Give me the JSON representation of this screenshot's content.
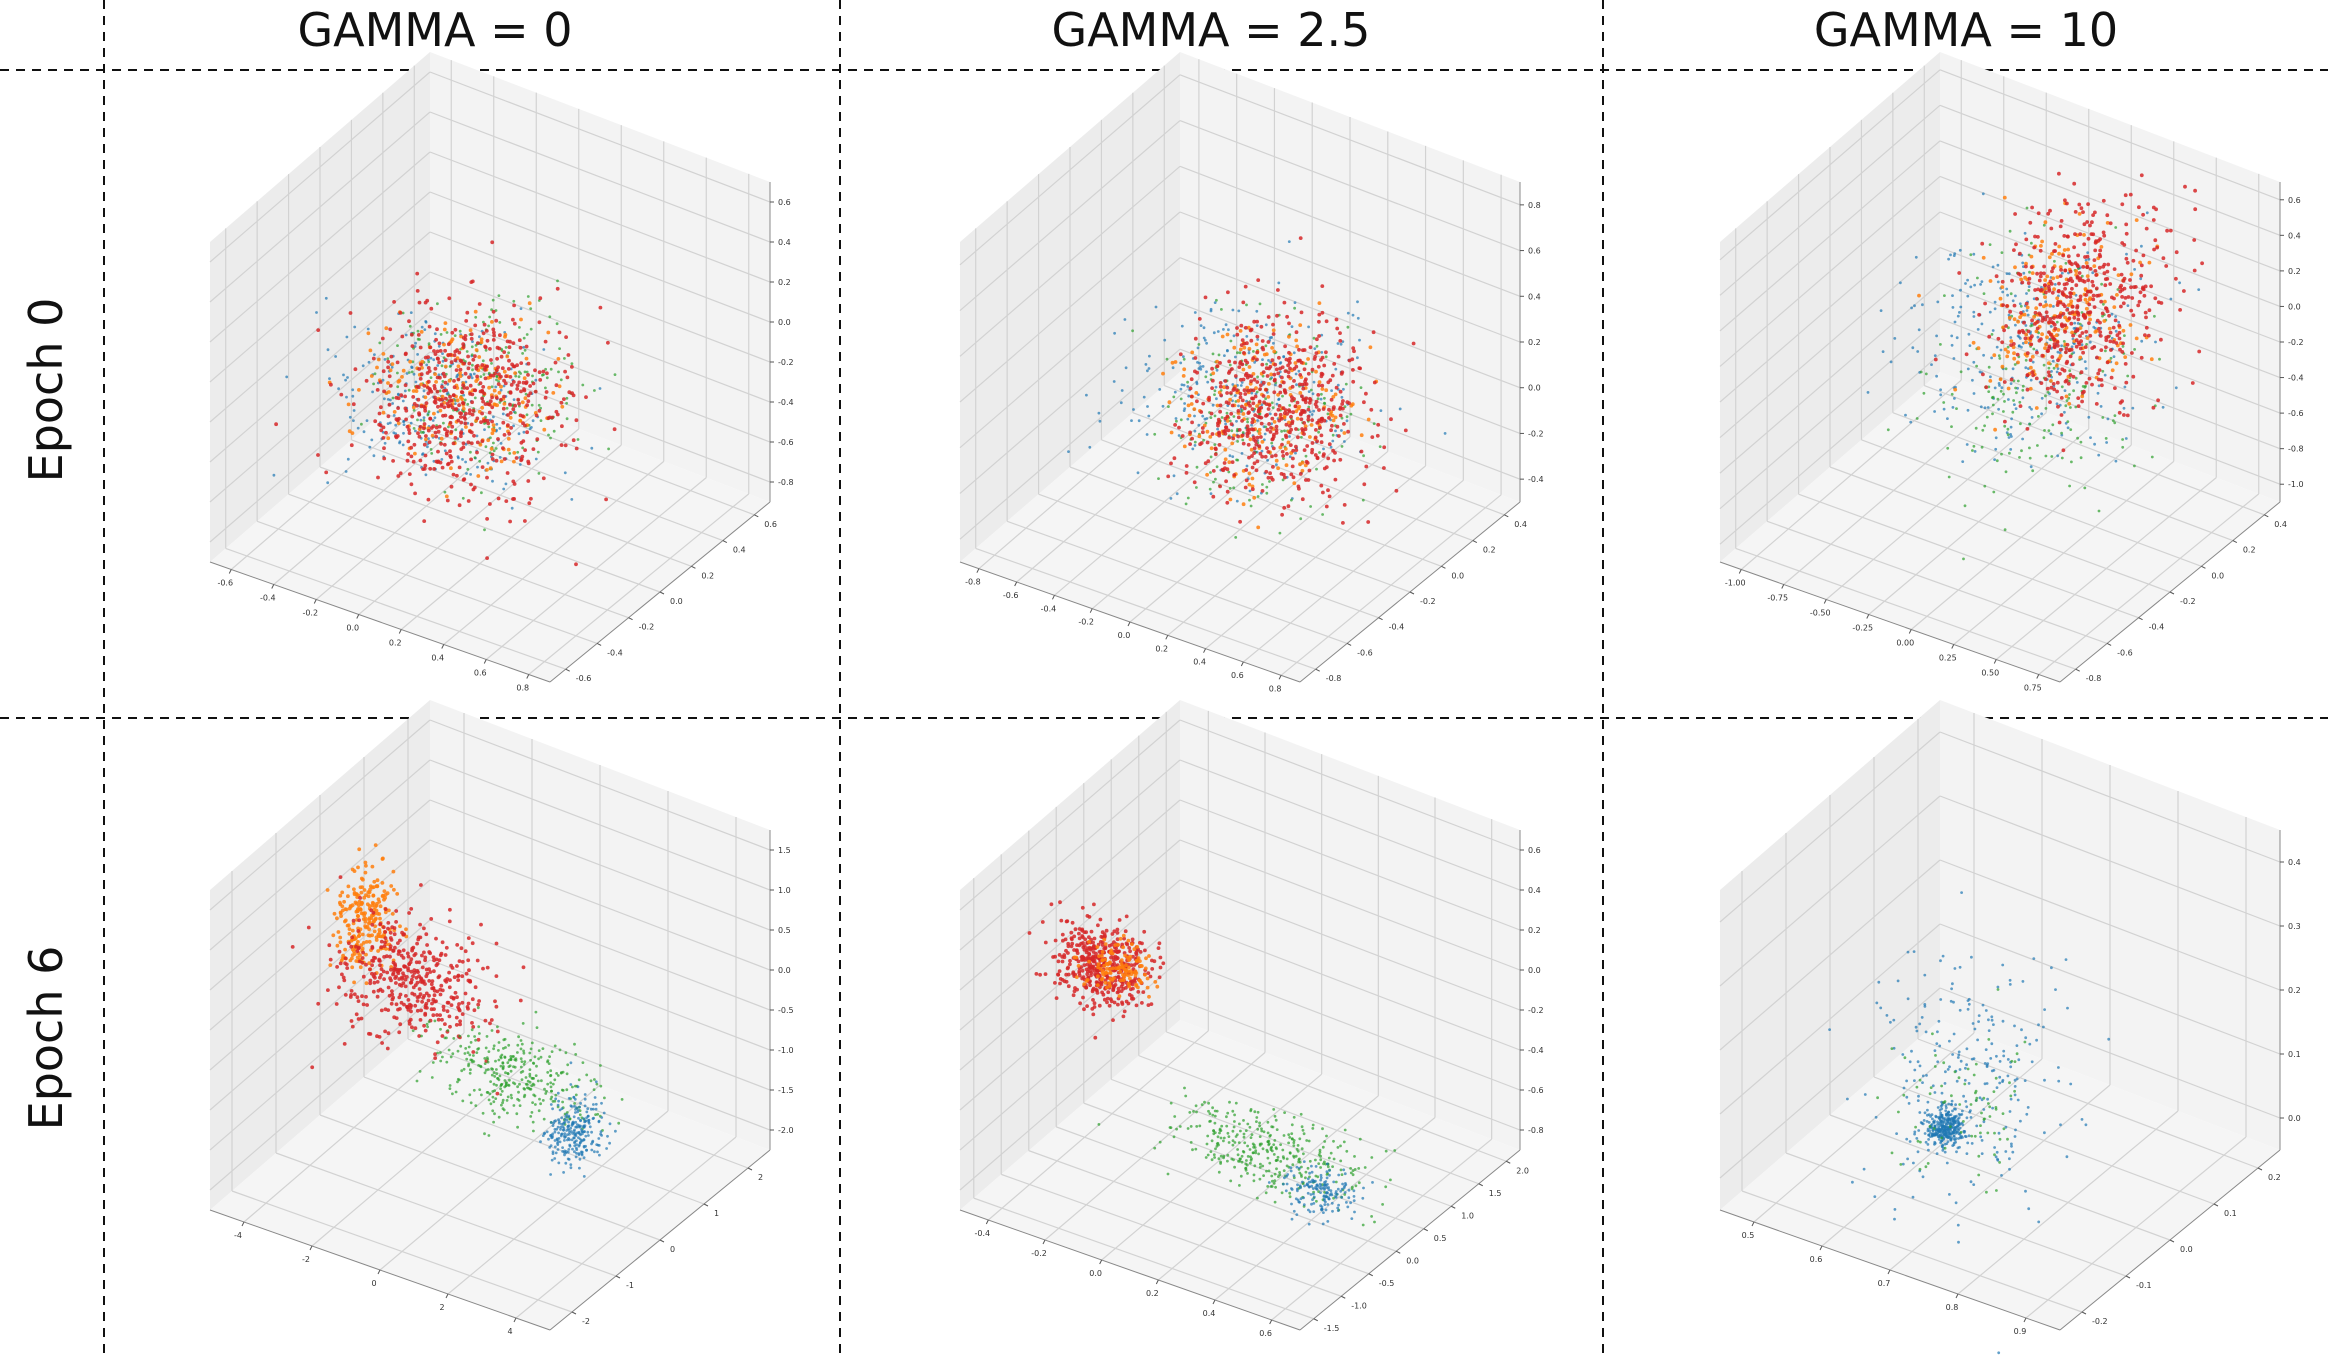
{
  "headers": {
    "columns": [
      "GAMMA = 0",
      "GAMMA = 2.5",
      "GAMMA = 10"
    ],
    "rows": [
      "Epoch 0",
      "Epoch 6"
    ]
  },
  "colors": {
    "class_a": "#d62728",
    "class_b": "#ff7f0e",
    "class_c": "#2ca02c",
    "class_d": "#1f77b4"
  },
  "chart_data": [
    {
      "type": "scatter",
      "subtype": "3d",
      "title": "",
      "row": "Epoch 0",
      "column": "GAMMA = 0",
      "x_ticks": [
        "-0.6",
        "-0.4",
        "-0.2",
        "0.0",
        "0.2",
        "0.4",
        "0.6",
        "0.8"
      ],
      "y_ticks": [
        "-0.6",
        "-0.4",
        "-0.2",
        "0.0",
        "0.2",
        "0.4",
        "0.6"
      ],
      "z_ticks": [
        "0.6",
        "0.4",
        "0.2",
        "0.0",
        "-0.2",
        "-0.4",
        "-0.6",
        "-0.8"
      ],
      "xlim": [
        -0.7,
        0.9
      ],
      "ylim": [
        -0.7,
        0.7
      ],
      "zlim": [
        -0.9,
        0.7
      ],
      "clusters": [
        {
          "color": "class_d",
          "center": [
            -0.15,
            0.0,
            -0.35
          ],
          "spread": [
            0.22,
            0.18,
            0.14
          ],
          "count": 260
        },
        {
          "color": "class_c",
          "center": [
            0.05,
            0.05,
            -0.25
          ],
          "spread": [
            0.22,
            0.18,
            0.18
          ],
          "count": 220
        },
        {
          "color": "class_b",
          "center": [
            -0.05,
            0.0,
            -0.3
          ],
          "spread": [
            0.18,
            0.15,
            0.15
          ],
          "count": 180
        },
        {
          "color": "class_a",
          "center": [
            0.0,
            0.0,
            -0.3
          ],
          "spread": [
            0.2,
            0.18,
            0.2
          ],
          "count": 520
        }
      ]
    },
    {
      "type": "scatter",
      "subtype": "3d",
      "title": "",
      "row": "Epoch 0",
      "column": "GAMMA = 2.5",
      "x_ticks": [
        "-0.8",
        "-0.6",
        "-0.4",
        "-0.2",
        "0.0",
        "0.2",
        "0.4",
        "0.6",
        "0.8"
      ],
      "y_ticks": [
        "-0.8",
        "-0.6",
        "-0.4",
        "-0.2",
        "0.0",
        "0.2",
        "0.4"
      ],
      "z_ticks": [
        "0.8",
        "0.6",
        "0.4",
        "0.2",
        "0.0",
        "-0.2",
        "-0.4"
      ],
      "xlim": [
        -0.9,
        0.9
      ],
      "ylim": [
        -0.9,
        0.5
      ],
      "zlim": [
        -0.5,
        0.9
      ],
      "clusters": [
        {
          "color": "class_d",
          "center": [
            -0.05,
            -0.1,
            0.0
          ],
          "spread": [
            0.28,
            0.2,
            0.14
          ],
          "count": 260
        },
        {
          "color": "class_c",
          "center": [
            0.05,
            -0.15,
            -0.05
          ],
          "spread": [
            0.2,
            0.18,
            0.18
          ],
          "count": 180
        },
        {
          "color": "class_b",
          "center": [
            0.05,
            -0.1,
            0.0
          ],
          "spread": [
            0.18,
            0.15,
            0.15
          ],
          "count": 180
        },
        {
          "color": "class_a",
          "center": [
            0.1,
            -0.1,
            0.0
          ],
          "spread": [
            0.2,
            0.18,
            0.18
          ],
          "count": 520
        }
      ]
    },
    {
      "type": "scatter",
      "subtype": "3d",
      "title": "",
      "row": "Epoch 0",
      "column": "GAMMA = 10",
      "x_ticks": [
        "-1.00",
        "-0.75",
        "-0.50",
        "-0.25",
        "0.00",
        "0.25",
        "0.50",
        "0.75"
      ],
      "y_ticks": [
        "-0.8",
        "-0.6",
        "-0.4",
        "-0.2",
        "0.0",
        "0.2",
        "0.4"
      ],
      "z_ticks": [
        "0.6",
        "0.4",
        "0.2",
        "0.0",
        "-0.2",
        "-0.4",
        "-0.6",
        "-0.8",
        "-1.0"
      ],
      "xlim": [
        -1.1,
        0.85
      ],
      "ylim": [
        -0.85,
        0.5
      ],
      "zlim": [
        -1.1,
        0.7
      ],
      "clusters": [
        {
          "color": "class_d",
          "center": [
            -0.1,
            0.0,
            -0.2
          ],
          "spread": [
            0.28,
            0.2,
            0.25
          ],
          "count": 300
        },
        {
          "color": "class_c",
          "center": [
            0.0,
            -0.1,
            -0.3
          ],
          "spread": [
            0.22,
            0.2,
            0.3
          ],
          "count": 200
        },
        {
          "color": "class_b",
          "center": [
            0.05,
            0.0,
            0.0
          ],
          "spread": [
            0.2,
            0.15,
            0.2
          ],
          "count": 200
        },
        {
          "color": "class_a",
          "center": [
            0.1,
            0.05,
            0.05
          ],
          "spread": [
            0.2,
            0.18,
            0.25
          ],
          "count": 480
        }
      ]
    },
    {
      "type": "scatter",
      "subtype": "3d",
      "title": "",
      "row": "Epoch 6",
      "column": "GAMMA = 0",
      "x_ticks": [
        "-4",
        "-2",
        "0",
        "2",
        "4"
      ],
      "y_ticks": [
        "-2",
        "-1",
        "0",
        "1",
        "2"
      ],
      "z_ticks": [
        "1.5",
        "1.0",
        "0.5",
        "0.0",
        "-0.5",
        "-1.0",
        "-1.5",
        "-2.0"
      ],
      "xlim": [
        -4.5,
        5
      ],
      "ylim": [
        -2.5,
        2.5
      ],
      "zlim": [
        -2.2,
        1.7
      ],
      "clusters": [
        {
          "color": "class_b",
          "center": [
            -3.6,
            0.3,
            0.2
          ],
          "spread": [
            0.35,
            0.25,
            0.3
          ],
          "count": 240
        },
        {
          "color": "class_a",
          "center": [
            -2.2,
            0.2,
            -0.3
          ],
          "spread": [
            1.0,
            0.3,
            0.35
          ],
          "count": 420
        },
        {
          "color": "class_c",
          "center": [
            0.8,
            0.0,
            -0.9
          ],
          "spread": [
            1.1,
            0.25,
            0.25
          ],
          "count": 340
        },
        {
          "color": "class_d",
          "center": [
            2.6,
            0.0,
            -1.3
          ],
          "spread": [
            0.3,
            0.2,
            0.2
          ],
          "count": 260
        }
      ]
    },
    {
      "type": "scatter",
      "subtype": "3d",
      "title": "",
      "row": "Epoch 6",
      "column": "GAMMA = 2.5",
      "x_ticks": [
        "-0.4",
        "-0.2",
        "0.0",
        "0.2",
        "0.4",
        "0.6"
      ],
      "y_ticks": [
        "-1.5",
        "-1.0",
        "-0.5",
        "0.0",
        "0.5",
        "1.0",
        "1.5",
        "2.0"
      ],
      "z_ticks": [
        "0.6",
        "0.4",
        "0.2",
        "0.0",
        "-0.2",
        "-0.4",
        "-0.6",
        "-0.8"
      ],
      "xlim": [
        -0.45,
        0.65
      ],
      "ylim": [
        -1.7,
        2.2
      ],
      "zlim": [
        -0.9,
        0.7
      ],
      "clusters": [
        {
          "color": "class_a",
          "center": [
            -0.3,
            0.0,
            0.0
          ],
          "spread": [
            0.07,
            0.2,
            0.08
          ],
          "count": 460
        },
        {
          "color": "class_b",
          "center": [
            -0.25,
            0.0,
            0.0
          ],
          "spread": [
            0.05,
            0.15,
            0.05
          ],
          "count": 120
        },
        {
          "color": "class_c",
          "center": [
            0.25,
            0.0,
            -0.65
          ],
          "spread": [
            0.15,
            0.2,
            0.08
          ],
          "count": 360
        },
        {
          "color": "class_d",
          "center": [
            0.4,
            0.0,
            -0.75
          ],
          "spread": [
            0.05,
            0.15,
            0.05
          ],
          "count": 160
        }
      ]
    },
    {
      "type": "scatter",
      "subtype": "3d",
      "title": "",
      "row": "Epoch 6",
      "column": "GAMMA = 10",
      "x_ticks": [
        "0.5",
        "0.6",
        "0.7",
        "0.8",
        "0.9"
      ],
      "y_ticks": [
        "-0.2",
        "-0.1",
        "0.0",
        "0.1",
        "0.2"
      ],
      "z_ticks": [
        "0.4",
        "0.3",
        "0.2",
        "0.1",
        "0.0"
      ],
      "xlim": [
        0.45,
        0.95
      ],
      "ylim": [
        -0.22,
        0.22
      ],
      "zlim": [
        -0.02,
        0.45
      ],
      "clusters": [
        {
          "color": "class_d",
          "center": [
            0.62,
            0.0,
            0.02
          ],
          "spread": [
            0.012,
            0.012,
            0.012
          ],
          "count": 320
        },
        {
          "color": "class_d",
          "center": [
            0.65,
            0.0,
            0.1
          ],
          "spread": [
            0.06,
            0.06,
            0.08
          ],
          "count": 240
        },
        {
          "color": "class_c",
          "center": [
            0.64,
            0.0,
            0.06
          ],
          "spread": [
            0.04,
            0.05,
            0.05
          ],
          "count": 80
        }
      ]
    }
  ]
}
